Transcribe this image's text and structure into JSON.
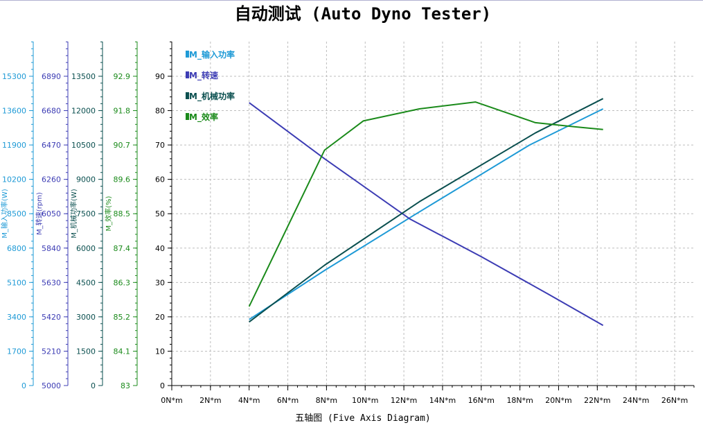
{
  "title": "自动测试 (Auto Dyno Tester)",
  "chart_data": {
    "type": "line",
    "title": "自动测试 (Auto Dyno Tester)",
    "xlabel": "五轴图 (Five Axis Diagram)",
    "x_unit": "N*m",
    "x_range": [
      0,
      27
    ],
    "x_ticks": [
      "0N*m",
      "2N*m",
      "4N*m",
      "6N*m",
      "8N*m",
      "10N*m",
      "12N*m",
      "14N*m",
      "16N*m",
      "18N*m",
      "20N*m",
      "22N*m",
      "24N*m",
      "26N*m"
    ],
    "grid": true,
    "legend_position": "top-left",
    "primary_axis": {
      "label": "",
      "range": [
        0,
        100
      ],
      "ticks": [
        "0",
        "10",
        "20",
        "30",
        "40",
        "50",
        "60",
        "70",
        "80",
        "90"
      ]
    },
    "secondary_axes": [
      {
        "label": "M_输入功率(W)",
        "color": "#1E9AD6",
        "range": [
          0,
          17000
        ],
        "ticks": [
          "0",
          "1700",
          "3400",
          "5100",
          "6800",
          "8500",
          "10200",
          "11900",
          "13600",
          "15300"
        ]
      },
      {
        "label": "M_转速(rpm)",
        "color": "#3C3CB4",
        "range": [
          5000,
          7100
        ],
        "ticks": [
          "5000",
          "5210",
          "5420",
          "5630",
          "5840",
          "6050",
          "6260",
          "6470",
          "6680",
          "6890"
        ]
      },
      {
        "label": "M_机械功率(W)",
        "color": "#0A4F4F",
        "range": [
          0,
          15000
        ],
        "ticks": [
          "0",
          "1500",
          "3000",
          "4500",
          "6000",
          "7500",
          "9000",
          "10500",
          "12000",
          "13500"
        ]
      },
      {
        "label": "M_效率(%)",
        "color": "#1A8A1A",
        "range": [
          83,
          94
        ],
        "ticks": [
          "83",
          "84.1",
          "85.2",
          "86.3",
          "87.4",
          "88.5",
          "89.6",
          "90.7",
          "91.8",
          "92.9"
        ]
      }
    ],
    "series": [
      {
        "name": "M_输入功率",
        "color": "#1E9AD6",
        "x": [
          4.0,
          7.9,
          12.5,
          18.5,
          22.3
        ],
        "y": [
          19.2,
          33.5,
          49.5,
          70.0,
          80.5
        ]
      },
      {
        "name": "M_转速",
        "color": "#3C3CB4",
        "x": [
          4.0,
          7.9,
          12.3,
          16.0,
          19.5,
          22.3
        ],
        "y": [
          82.3,
          66.0,
          48.5,
          37.5,
          26.5,
          17.5
        ]
      },
      {
        "name": "M_机械功率",
        "color": "#0A4F4F",
        "x": [
          4.0,
          7.9,
          12.8,
          18.8,
          22.3
        ],
        "y": [
          18.5,
          35.0,
          53.5,
          73.5,
          83.5
        ]
      },
      {
        "name": "M_效率",
        "color": "#1A8A1A",
        "x": [
          4.0,
          7.9,
          9.9,
          12.8,
          15.7,
          18.8,
          20.8,
          22.3
        ],
        "y": [
          23.0,
          68.5,
          77.0,
          80.5,
          82.5,
          76.5,
          75.3,
          74.5
        ]
      }
    ]
  }
}
